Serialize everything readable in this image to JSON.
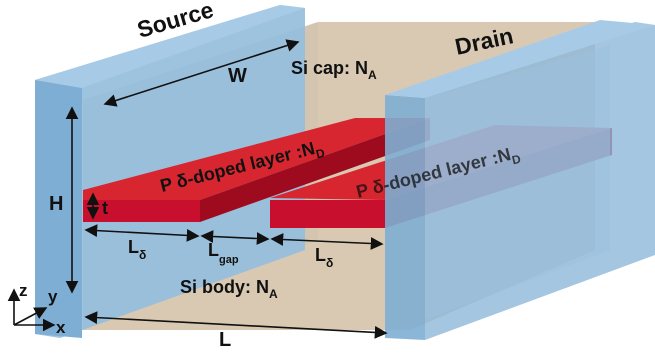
{
  "diagram": {
    "labels": {
      "source": "Source",
      "drain": "Drain",
      "width": "W",
      "height": "H",
      "thickness": "t",
      "length": "L",
      "cap": "Si cap: N",
      "cap_sub": "A",
      "body": "Si body: N",
      "body_sub": "A",
      "delta_left": "P δ-doped layer :N",
      "delta_left_sub": "D",
      "delta_right": "P δ-doped layer :N",
      "delta_right_sub": "D",
      "l_delta_main": "L",
      "l_delta_sub": "δ",
      "l_gap_main": "L",
      "l_gap_sub": "gap"
    },
    "axes": {
      "z": "z",
      "y": "y",
      "x": "x"
    },
    "colors": {
      "electrode": "#8db8d8",
      "electrode_face": "#a7cbe6",
      "silicon": "#d9c9b3",
      "delta_layer": "#c8102e",
      "delta_top": "#d7262f",
      "delta_side": "#9e0b1f"
    }
  }
}
